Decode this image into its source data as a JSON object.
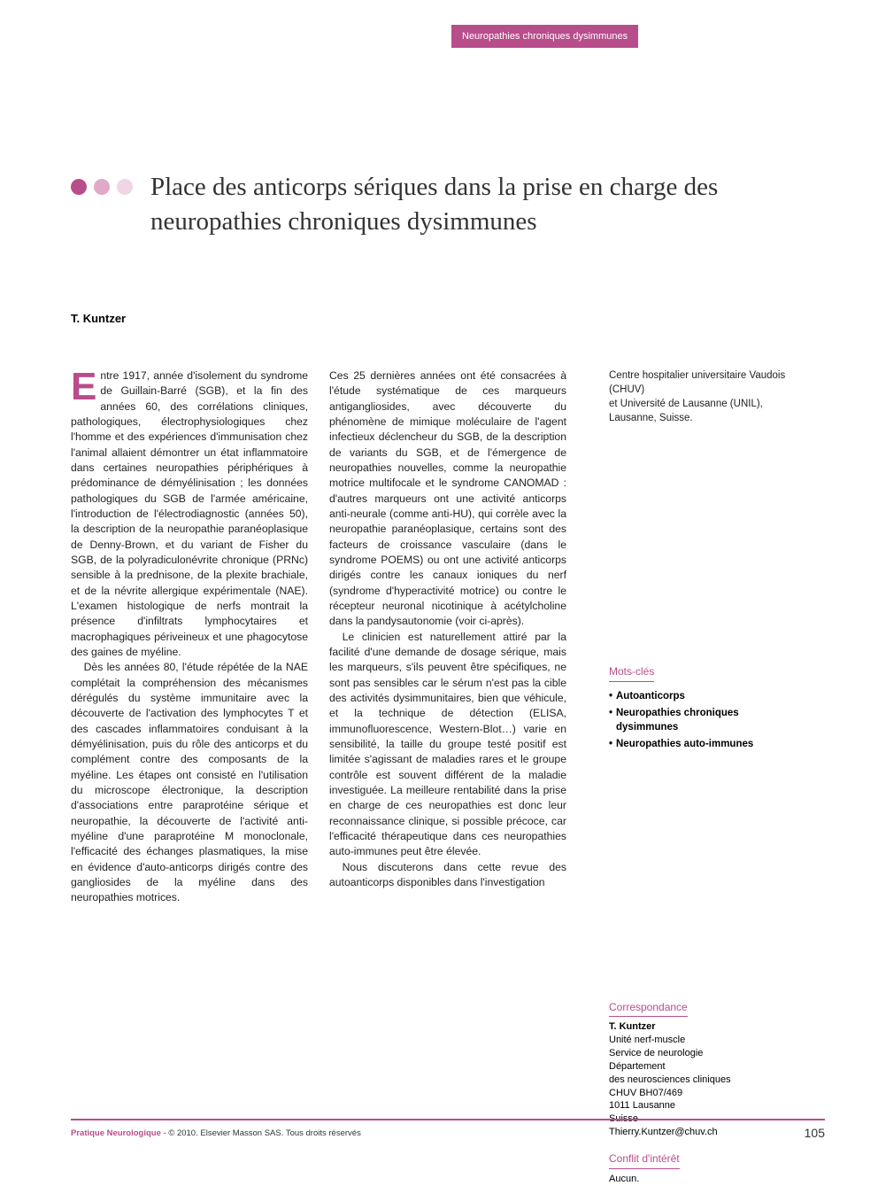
{
  "category_badge": "Neuropathies chroniques dysimmunes",
  "dots": [
    "#b84d8c",
    "#e0a9c9",
    "#f0d5e4"
  ],
  "title": "Place des anticorps sériques dans la prise en charge des neuropathies chroniques dysimmunes",
  "author": "T. Kuntzer",
  "dropcap": "E",
  "col1_p1": "ntre 1917, année d'isolement du syndrome de Guillain-Barré (SGB), et la fin des années 60, des corrélations cliniques, pathologiques, électrophysiologiques chez l'homme et des expériences d'immunisation chez l'animal allaient démontrer un état inflammatoire dans certaines neuropathies périphériques à prédominance de démyélinisation ; les données pathologiques du SGB de l'armée américaine, l'introduction de l'électrodiagnostic (années 50), la description de la neuropathie paranéoplasique de Denny-Brown, et du variant de Fisher du SGB, de la polyradiculonévrite chronique (PRNc) sensible à la prednisone, de la plexite brachiale, et de la névrite allergique expérimentale (NAE). L'examen histologique de nerfs montrait la présence d'infiltrats lymphocytaires et macrophagiques périveineux et une phagocytose des gaines de myéline.",
  "col1_p2": "Dès les années 80, l'étude répétée de la NAE complétait la compréhension des mécanismes dérégulés du système immunitaire avec la découverte de l'activation des lymphocytes T et des cascades inflammatoires conduisant à la démyélinisation, puis du rôle des anticorps et du complément contre des composants de la myéline. Les étapes ont consisté en l'utilisation du microscope électronique, la description d'associations entre paraprotéine sérique et neuropathie, la découverte de l'activité anti-myéline d'une paraprotéine M monoclonale, l'efficacité des échanges plasmatiques, la mise en évidence d'auto-anticorps dirigés contre des gangliosides de la myéline dans des neuropathies motrices.",
  "col2_p1": "Ces 25 dernières années ont été consacrées à l'étude systématique de ces marqueurs antigangliosides, avec découverte du phénomène de mimique moléculaire de l'agent infectieux déclencheur du SGB, de la description de variants du SGB, et de l'émergence de neuropathies nouvelles, comme la neuropathie motrice multifocale et le syndrome CANOMAD : d'autres marqueurs ont une activité anticorps anti-neurale (comme anti-HU), qui corrèle avec la neuropathie paranéoplasique, certains sont des facteurs de croissance vasculaire (dans le syndrome POEMS) ou ont une activité anticorps dirigés contre les canaux ioniques du nerf (syndrome d'hyperactivité motrice) ou contre le récepteur neuronal nicotinique à acétylcholine dans la pandysautonomie (voir ci-après).",
  "col2_p2": "Le clinicien est naturellement attiré par la facilité d'une demande de dosage sérique, mais les marqueurs, s'ils peuvent être spécifiques, ne sont pas sensibles car le sérum n'est pas la cible des activités dysimmunitaires, bien que véhicule, et la technique de détection (ELISA, immunofluorescence, Western-Blot…) varie en sensibilité, la taille du groupe testé positif est limitée s'agissant de maladies rares et le groupe contrôle est souvent différent de la maladie investiguée. La meilleure rentabilité dans la prise en charge de ces neuropathies est donc leur reconnaissance clinique, si possible précoce, car l'efficacité thérapeutique dans ces neuropathies auto-immunes peut être élevée.",
  "col2_p3": "Nous discuterons dans cette revue des autoanticorps disponibles dans l'investigation",
  "affiliation": "Centre hospitalier universitaire Vaudois (CHUV)\net Université de Lausanne (UNIL), Lausanne, Suisse.",
  "keywords_label": "Mots-clés",
  "keywords": [
    "Autoanticorps",
    "Neuropathies chroniques dysimmunes",
    "Neuropathies auto-immunes"
  ],
  "corr_label": "Correspondance",
  "correspondence": "T. Kuntzer\nUnité nerf-muscle\nService de neurologie\nDépartement\ndes neurosciences cliniques\nCHUV BH07/469\n1011 Lausanne\nSuisse\nThierry.Kuntzer@chuv.ch",
  "conflict_label": "Conflit d'intérêt",
  "conflict_text": "Aucun.",
  "footer_journal": "Pratique Neurologique",
  "footer_copy": " - © 2010. Elsevier Masson SAS. Tous droits réservés",
  "page_number": "105"
}
